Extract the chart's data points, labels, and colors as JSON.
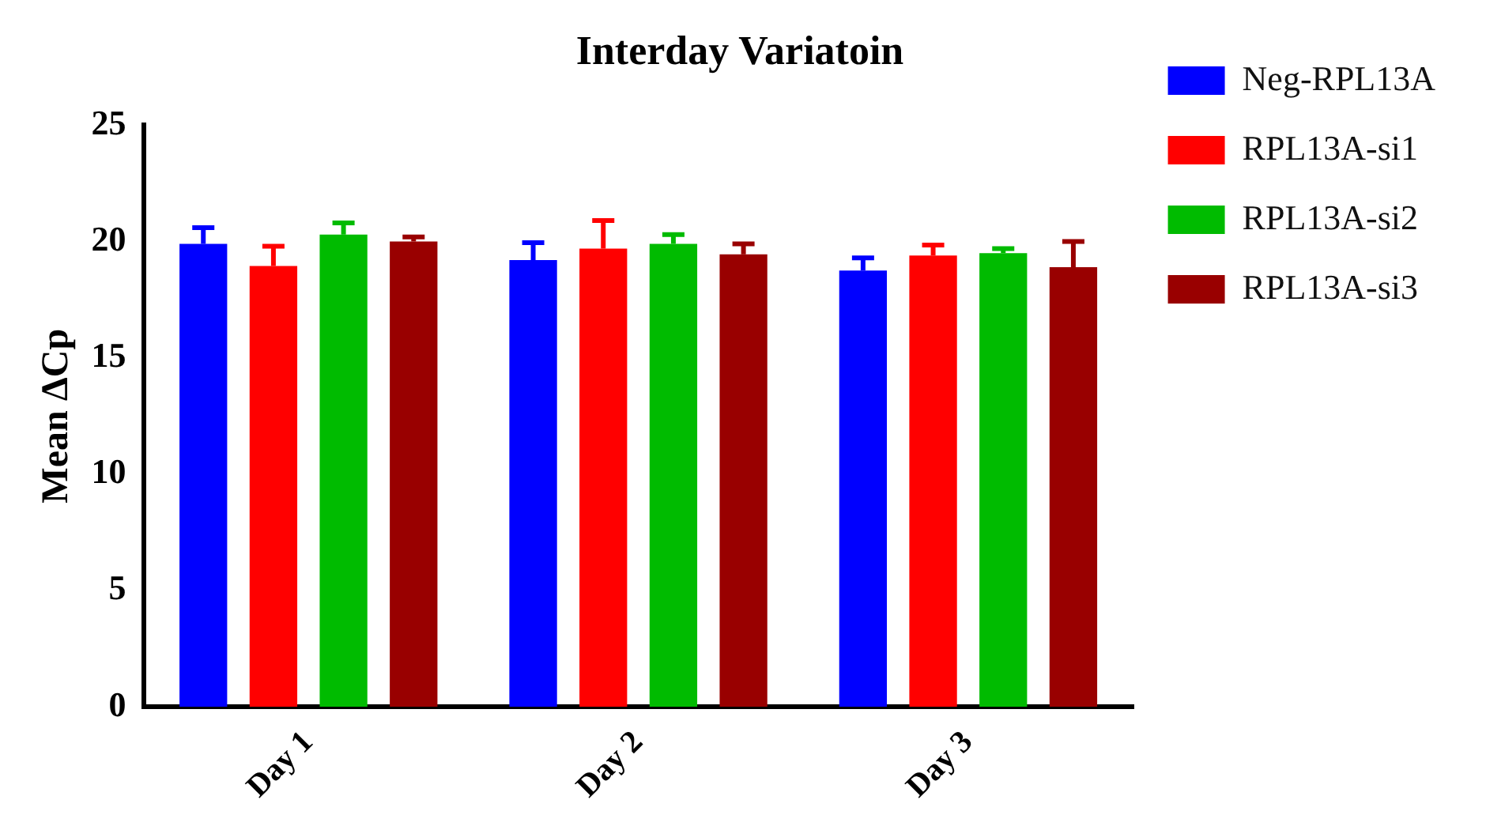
{
  "chart_data": {
    "type": "bar",
    "title": "Interday Variatoin",
    "ylabel": "Mean ΔCp",
    "categories": [
      "Day 1",
      "Day 2",
      "Day 3"
    ],
    "series": [
      {
        "name": "Neg-RPL13A",
        "color": "#0000ff",
        "values": [
          19.9,
          19.2,
          18.75
        ],
        "errors": [
          [
            19.9,
            20.6
          ],
          [
            19.2,
            19.95
          ],
          [
            18.75,
            19.3
          ]
        ]
      },
      {
        "name": "RPL13A-si1",
        "color": "#ff0000",
        "values": [
          18.95,
          19.7,
          19.4
        ],
        "errors": [
          [
            18.95,
            19.8
          ],
          [
            19.7,
            20.9
          ],
          [
            19.4,
            19.85
          ]
        ]
      },
      {
        "name": "RPL13A-si2",
        "color": "#00bb00",
        "values": [
          20.3,
          19.9,
          19.5
        ],
        "errors": [
          [
            20.3,
            20.8
          ],
          [
            19.9,
            20.3
          ],
          [
            19.5,
            19.7
          ]
        ]
      },
      {
        "name": "RPL13A-si3",
        "color": "#990000",
        "values": [
          20.0,
          19.45,
          18.9
        ],
        "errors": [
          [
            20.0,
            20.2
          ],
          [
            19.45,
            19.9
          ],
          [
            18.9,
            20.0
          ]
        ]
      }
    ],
    "ylim": [
      0,
      25
    ],
    "yticks": [
      0,
      5,
      10,
      15,
      20,
      25
    ],
    "grid": false,
    "legend": "right"
  }
}
